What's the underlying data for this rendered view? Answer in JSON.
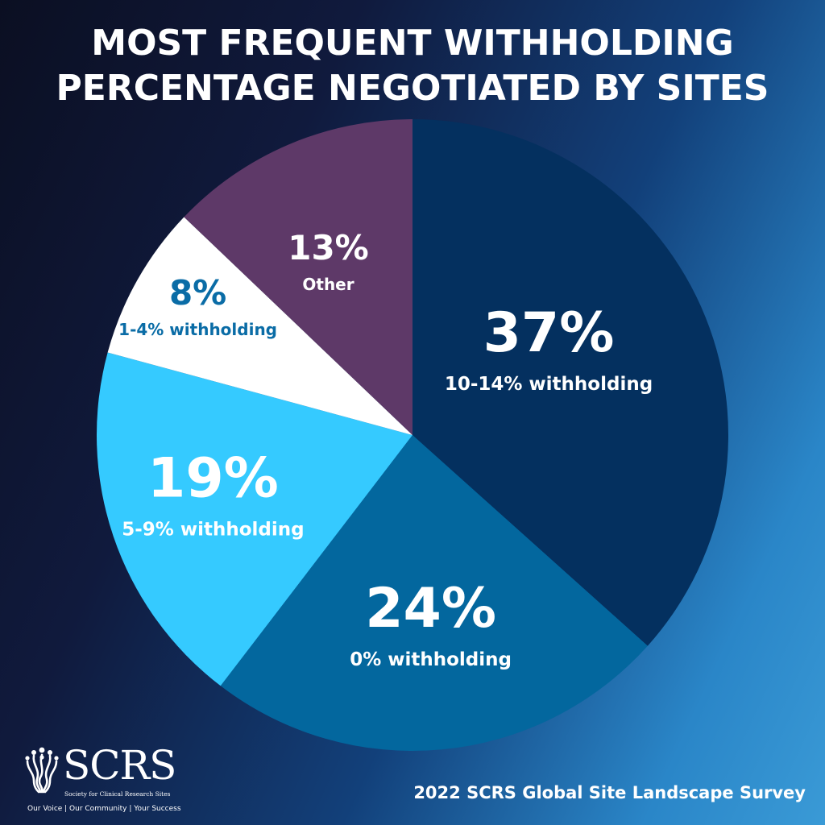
{
  "title": {
    "line1": "MOST FREQUENT WITHHOLDING",
    "line2": "PERCENTAGE  NEGOTIATED BY SITES"
  },
  "chart_data": {
    "type": "pie",
    "slices": [
      {
        "label": "10-14% withholding",
        "value": 37,
        "display": "37%",
        "color": "#04305f",
        "text_color": "#ffffff"
      },
      {
        "label": "0% withholding",
        "value": 24,
        "display": "24%",
        "color": "#03679e",
        "text_color": "#ffffff"
      },
      {
        "label": "5-9% withholding",
        "value": 19,
        "display": "19%",
        "color": "#35caff",
        "text_color": "#ffffff"
      },
      {
        "label": "1-4% withholding",
        "value": 8,
        "display": "8%",
        "color": "#ffffff",
        "text_color": "#0a6ca6"
      },
      {
        "label": "Other",
        "value": 13,
        "display": "13%",
        "color": "#5e3968",
        "text_color": "#ffffff"
      }
    ],
    "start_angle_deg": 0,
    "direction": "clockwise"
  },
  "logo": {
    "name": "SCRS",
    "subtitle": "Society for Clinical Research Sites",
    "tagline": "Our Voice  |  Our Community  |  Your Success",
    "icon": "people-tree-icon"
  },
  "source": "2022 SCRS Global Site Landscape Survey"
}
